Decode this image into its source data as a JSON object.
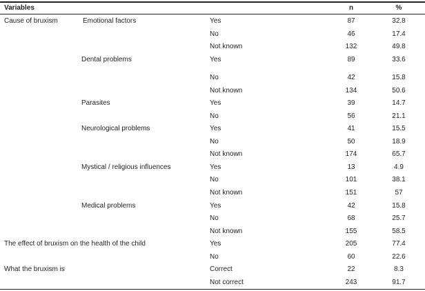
{
  "table": {
    "header": [
      "Variables",
      "n",
      "%"
    ],
    "rows": [
      [
        "Cause of bruxism",
        "Emotional factors",
        "Yes",
        87,
        32.8
      ],
      [
        null,
        null,
        "No",
        46,
        17.4
      ],
      [
        null,
        null,
        "Not known",
        132,
        49.8
      ],
      [
        null,
        "Dental problems",
        "Yes",
        89,
        33.6
      ],
      [
        null,
        null,
        "No",
        42,
        15.8
      ],
      [
        null,
        null,
        "Not known",
        134,
        50.6
      ],
      [
        null,
        "Parasites",
        "Yes",
        39,
        14.7
      ],
      [
        null,
        null,
        "No",
        56,
        21.1
      ],
      [
        null,
        "Neurological problems",
        "Yes",
        41,
        15.5
      ],
      [
        null,
        null,
        "No",
        50,
        18.9
      ],
      [
        null,
        null,
        "Not known",
        174,
        65.7
      ],
      [
        null,
        "Mystical / religious influences",
        "Yes",
        13,
        4.9
      ],
      [
        null,
        null,
        "No",
        101,
        38.1
      ],
      [
        null,
        null,
        "Not known",
        151,
        57
      ],
      [
        null,
        "Medical problems",
        "Yes",
        42,
        15.8
      ],
      [
        null,
        null,
        "No",
        68,
        25.7
      ],
      [
        null,
        null,
        "Not known",
        155,
        58.5
      ],
      [
        "The effect of bruxism on the health of the child",
        null,
        "Yes",
        205,
        77.4
      ],
      [
        null,
        null,
        "No",
        60,
        22.6
      ],
      [
        "What the bruxism is",
        null,
        "Correct",
        22,
        8.3
      ],
      [
        null,
        null,
        "Not correct",
        243,
        91.7
      ]
    ]
  }
}
